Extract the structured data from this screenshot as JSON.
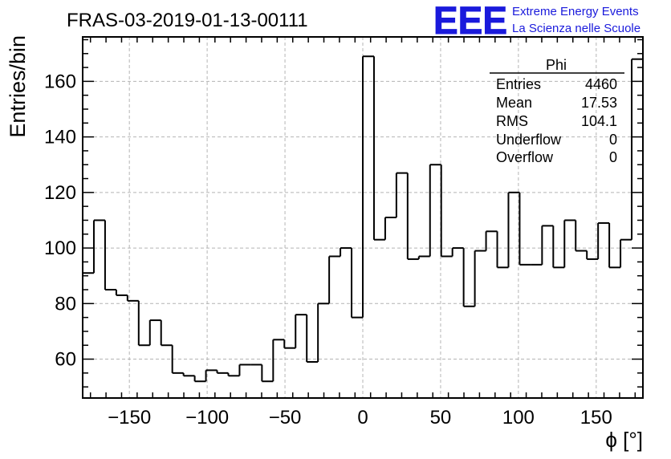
{
  "chart_data": {
    "type": "bar",
    "title": "FRAS-03-2019-01-13-00111",
    "xlabel": "ϕ [°]",
    "ylabel": "Entries/bin",
    "xlim": [
      -180,
      180
    ],
    "ylim": [
      46,
      176
    ],
    "grid": true,
    "bin_width": 7.2,
    "xticks": [
      -150,
      -100,
      -50,
      0,
      50,
      100,
      150
    ],
    "xtick_labels": [
      "−150",
      "−100",
      "−50",
      "0",
      "50",
      "100",
      "150"
    ],
    "yticks": [
      60,
      80,
      100,
      120,
      140,
      160
    ],
    "values": [
      91,
      110,
      85,
      83,
      81,
      65,
      74,
      65,
      55,
      54,
      52,
      56,
      55,
      54,
      58,
      58,
      52,
      67,
      64,
      76,
      59,
      80,
      97,
      100,
      75,
      169,
      103,
      111,
      127,
      96,
      97,
      130,
      97,
      100,
      79,
      99,
      106,
      93,
      120,
      94,
      94,
      108,
      93,
      110,
      99,
      96,
      109,
      93,
      103,
      168
    ],
    "stats": {
      "name": "Phi",
      "rows": [
        {
          "label": "Entries",
          "value": "4460"
        },
        {
          "label": "Mean",
          "value": "17.53"
        },
        {
          "label": "RMS",
          "value": "104.1"
        },
        {
          "label": "Underflow",
          "value": "0"
        },
        {
          "label": "Overflow",
          "value": "0"
        }
      ]
    },
    "logo": {
      "mark": "EEE",
      "line1": "Extreme Energy Events",
      "line2": "La Scienza nelle Scuole",
      "color": "#1a1adc"
    },
    "line_color": "#000000",
    "grid_color": "#b4b4b4"
  }
}
